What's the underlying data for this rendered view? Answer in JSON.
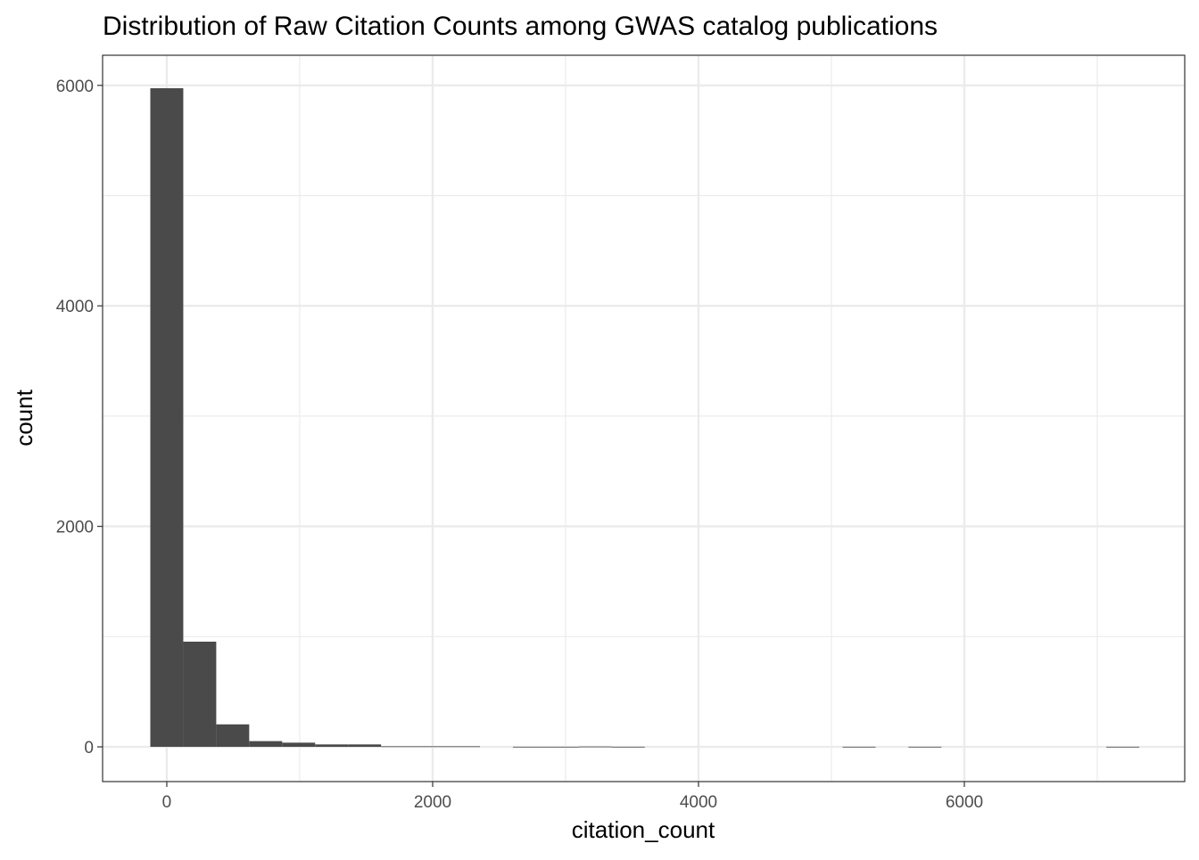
{
  "chart_data": {
    "type": "bar",
    "title": "Distribution of Raw Citation Counts among GWAS catalog publications",
    "xlabel": "citation_count",
    "ylabel": "count",
    "bin_width": 248,
    "bin_centers": [
      0,
      248,
      496,
      744,
      992,
      1240,
      1488,
      1736,
      1984,
      2232,
      2480,
      2728,
      2976,
      3224,
      3472,
      3720,
      3968,
      4216,
      4464,
      4712,
      4960,
      5208,
      5456,
      5704,
      5952,
      6200,
      6448,
      6696,
      6944,
      7192
    ],
    "values": [
      5974,
      954,
      204,
      52,
      38,
      22,
      22,
      5,
      5,
      5,
      0,
      1,
      1,
      3,
      1,
      0,
      0,
      0,
      0,
      0,
      0,
      1,
      0,
      1,
      0,
      0,
      0,
      0,
      0,
      1
    ],
    "xlim": [
      -483,
      7658
    ],
    "ylim": [
      -315,
      6273
    ],
    "x_ticks": [
      "0",
      "2000",
      "4000",
      "6000"
    ],
    "y_ticks": [
      "0",
      "2000",
      "4000",
      "6000"
    ],
    "grid": true,
    "bar_color": "#4a4a4a",
    "grid_color": "#ebebeb"
  }
}
